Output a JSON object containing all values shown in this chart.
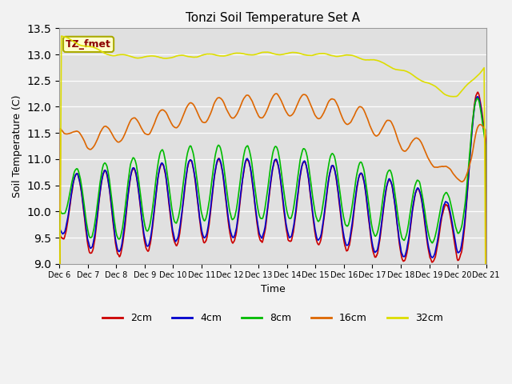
{
  "title": "Tonzi Soil Temperature Set A",
  "xlabel": "Time",
  "ylabel": "Soil Temperature (C)",
  "ylim": [
    9.0,
    13.5
  ],
  "annotation": "TZ_fmet",
  "bg_color": "#d8d8d8",
  "legend_labels": [
    "2cm",
    "4cm",
    "8cm",
    "16cm",
    "32cm"
  ],
  "line_colors": [
    "#cc0000",
    "#0000cc",
    "#00bb00",
    "#dd6600",
    "#dddd00"
  ],
  "xtick_labels": [
    "Dec 6",
    "Dec 7",
    "Dec 8",
    "Dec 9",
    "Dec 10",
    "Dec 11",
    "Dec 12",
    "Dec 13",
    "Dec 14",
    "Dec 15",
    "Dec 16",
    "Dec 17",
    "Dec 18",
    "Dec 19",
    "Dec 20",
    "Dec 21"
  ],
  "n_days": 15
}
